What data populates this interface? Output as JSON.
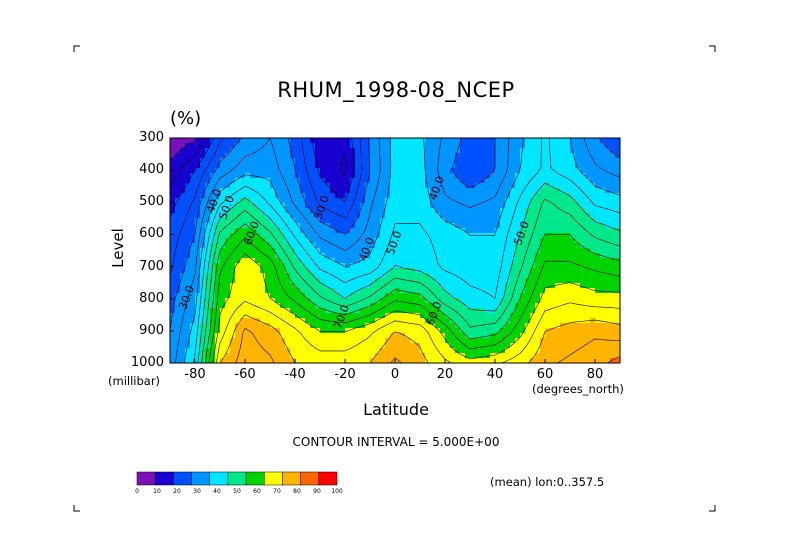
{
  "chart_data": {
    "type": "heatmap",
    "title": "RHUM_1998-08_NCEP",
    "units": "(%)",
    "xlabel": "Latitude",
    "ylabel": "Level",
    "x_units": "(degrees_north)",
    "y_units": "(millibar)",
    "xlim": [
      -90,
      90
    ],
    "ylim": [
      1000,
      300
    ],
    "x_ticks": [
      "-80",
      "-60",
      "-40",
      "-20",
      "0",
      "20",
      "40",
      "60",
      "80"
    ],
    "x_tick_values": [
      -80,
      -60,
      -40,
      -20,
      0,
      20,
      40,
      60,
      80
    ],
    "y_ticks": [
      "300",
      "400",
      "500",
      "600",
      "700",
      "800",
      "900",
      "1000"
    ],
    "y_tick_values": [
      300,
      400,
      500,
      600,
      700,
      800,
      900,
      1000
    ],
    "contour_interval_text": "CONTOUR INTERVAL = 5.000E+00",
    "mean_text": "(mean) lon:0..357.5",
    "contour_labels": [
      {
        "text": "30.0",
        "lat": -82,
        "level": 800
      },
      {
        "text": "40.0",
        "lat": -71,
        "level": 500
      },
      {
        "text": "50.0",
        "lat": -66,
        "level": 520
      },
      {
        "text": "60.0",
        "lat": -56,
        "level": 600
      },
      {
        "text": "30.0",
        "lat": -28,
        "level": 520
      },
      {
        "text": "40.0",
        "lat": -10,
        "level": 650
      },
      {
        "text": "50.0",
        "lat": 1,
        "level": 630
      },
      {
        "text": "70.0",
        "lat": -20,
        "level": 860
      },
      {
        "text": "40.0",
        "lat": 18,
        "level": 460
      },
      {
        "text": "60.0",
        "lat": 17,
        "level": 850
      },
      {
        "text": "50.0",
        "lat": 52,
        "level": 600
      }
    ],
    "colorbar": {
      "labels": [
        "0",
        "10",
        "20",
        "30",
        "40",
        "50",
        "60",
        "70",
        "80",
        "90",
        "100"
      ],
      "colors": [
        "#7a10b8",
        "#1800d0",
        "#0050ff",
        "#0096ff",
        "#00e6ff",
        "#00e88a",
        "#00d400",
        "#ffff00",
        "#ffb400",
        "#ff6400",
        "#ff0000"
      ]
    },
    "grid_lat": [
      -90,
      -80,
      -70,
      -60,
      -50,
      -40,
      -30,
      -20,
      -10,
      0,
      10,
      20,
      30,
      40,
      50,
      60,
      70,
      80,
      90
    ],
    "grid_levels": [
      300,
      400,
      500,
      600,
      700,
      800,
      900,
      1000
    ],
    "values": [
      [
        5,
        9,
        24,
        31,
        35,
        28,
        16,
        16,
        31,
        42,
        41,
        34,
        28,
        30,
        39,
        46,
        40,
        31,
        25
      ],
      [
        12,
        20,
        32,
        38,
        38,
        30,
        19,
        14,
        30,
        42,
        42,
        32,
        25,
        30,
        40,
        46,
        42,
        36,
        33
      ],
      [
        18,
        26,
        44,
        52,
        44,
        34,
        24,
        20,
        34,
        43,
        43,
        36,
        34,
        36,
        46,
        56,
        52,
        44,
        42
      ],
      [
        22,
        30,
        56,
        64,
        56,
        44,
        34,
        30,
        37,
        46,
        46,
        43,
        40,
        40,
        50,
        60,
        60,
        54,
        51
      ],
      [
        24,
        34,
        64,
        74,
        68,
        54,
        44,
        40,
        42,
        50,
        48,
        44,
        42,
        42,
        54,
        66,
        66,
        64,
        62
      ],
      [
        28,
        38,
        68,
        74,
        70,
        64,
        56,
        50,
        56,
        64,
        62,
        52,
        47,
        45,
        60,
        72,
        74,
        72,
        72
      ],
      [
        30,
        42,
        72,
        86,
        82,
        76,
        70,
        70,
        74,
        80,
        78,
        68,
        56,
        58,
        68,
        80,
        82,
        84,
        82
      ],
      [
        32,
        46,
        80,
        88,
        86,
        80,
        78,
        78,
        80,
        86,
        82,
        76,
        72,
        74,
        78,
        84,
        86,
        88,
        92
      ]
    ]
  }
}
